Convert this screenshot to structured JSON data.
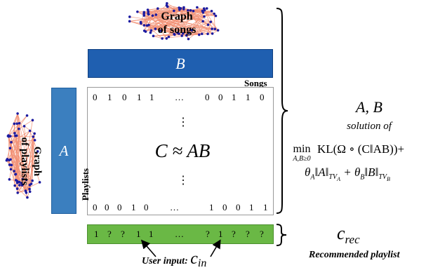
{
  "graphs": {
    "songs_label_line1": "Graph",
    "songs_label_line2": "of songs",
    "playlists_label_line1": "Graph",
    "playlists_label_line2": "of playlists"
  },
  "matrices": {
    "B_label": "B",
    "A_label": "A",
    "songs_label": "Songs",
    "playlists_label": "Playlists",
    "C_equation": "C ≈ AB",
    "top_row": [
      "0",
      "1",
      "0",
      "1",
      "1",
      "…",
      "0",
      "0",
      "1",
      "1",
      "0"
    ],
    "bottom_row": [
      "0",
      "0",
      "0",
      "1",
      "0",
      "…",
      "1",
      "0",
      "0",
      "1",
      "1"
    ]
  },
  "recommendation": {
    "row": [
      "1",
      "?",
      "?",
      "1",
      "1",
      "…",
      "?",
      "1",
      "?",
      "?",
      "?"
    ],
    "user_input_label": "User input: ",
    "c_in": "c",
    "c_in_sub": "in",
    "c_rec": "c",
    "c_rec_sub": "rec",
    "caption": "Recommended playlist"
  },
  "solution": {
    "title": "A, B",
    "subtitle": "solution of",
    "min_text": "min",
    "min_sub": "A,B≥0",
    "objective_line1": "KL(Ω ∘ (C‖AB))+",
    "objective_line2": "θ_A‖A‖_{TV_A} + θ_B‖B‖_{TV_B}"
  },
  "colors": {
    "B_fill": "#1f5fb0",
    "A_fill": "#3b7fbf",
    "rec_fill": "#6ab845",
    "edge_color": "#f08060",
    "node_color": "#1a1aa0"
  }
}
